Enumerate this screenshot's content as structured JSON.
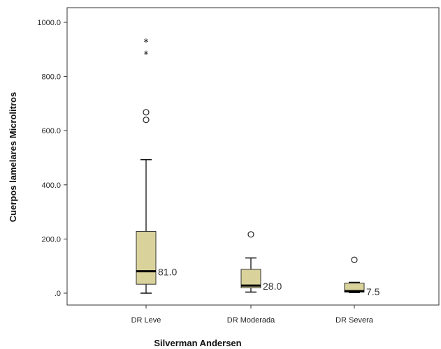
{
  "chart_data": {
    "type": "boxplot",
    "title": "",
    "xlabel": "Silverman Andersen",
    "ylabel": "Cuerpos lamelares Microlitros",
    "ylim": [
      0,
      1000
    ],
    "yticks": [
      0,
      200,
      400,
      600,
      800,
      1000
    ],
    "ytick_labels": [
      ".0",
      "200.0",
      "400.0",
      "600.0",
      "800.0",
      "1000.0"
    ],
    "grid": false,
    "box_color": "#d9d39b",
    "categories": [
      "DR Leve",
      "DR Moderada",
      "DR Severa"
    ],
    "boxes": [
      {
        "category": "DR Leve",
        "whisker_low": 0,
        "q1": 33,
        "median": 81,
        "q3": 228,
        "whisker_high": 493,
        "median_label": "81.0",
        "outliers_circle": [
          640,
          668
        ],
        "outliers_star": [
          887,
          932
        ]
      },
      {
        "category": "DR Moderada",
        "whisker_low": 4,
        "q1": 20,
        "median": 28,
        "q3": 88,
        "whisker_high": 130,
        "median_label": "28.0",
        "outliers_circle": [
          217
        ],
        "outliers_star": []
      },
      {
        "category": "DR Severa",
        "whisker_low": 2,
        "q1": 4,
        "median": 7.5,
        "q3": 37,
        "whisker_high": 40,
        "median_label": "7.5",
        "outliers_circle": [
          123
        ],
        "outliers_star": []
      }
    ]
  }
}
